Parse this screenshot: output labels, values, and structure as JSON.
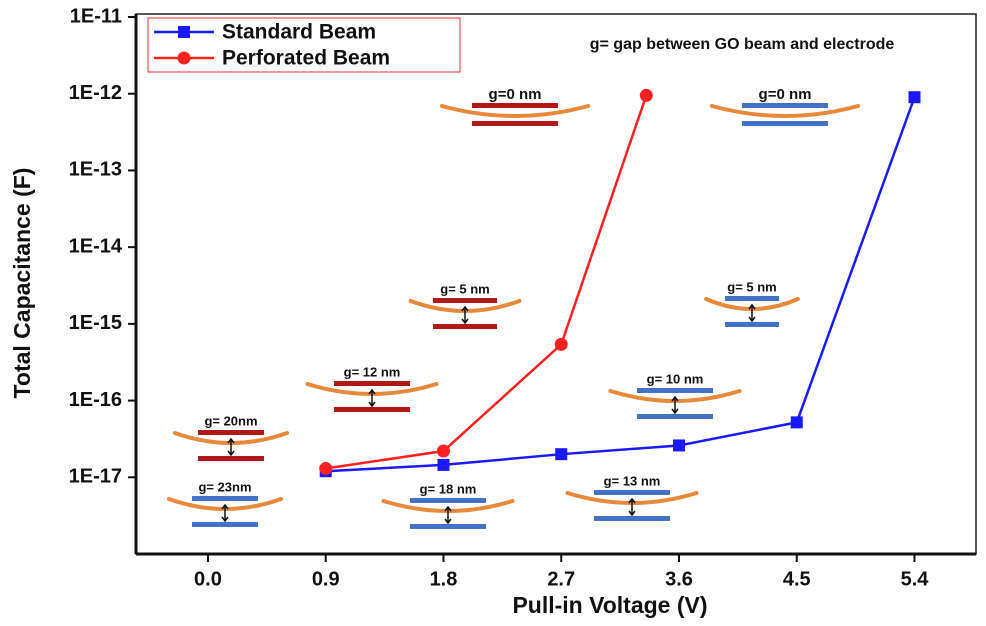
{
  "chart_data": {
    "type": "line",
    "ylabel": "Total Capacitance (F)",
    "xlabel": "Pull-in Voltage (V)",
    "yscale": "log",
    "ylim": [
      1e-18,
      1e-11
    ],
    "yticks": [
      {
        "value": 1e-11,
        "label": "1E-11"
      },
      {
        "value": 1e-12,
        "label": "1E-12"
      },
      {
        "value": 1e-13,
        "label": "1E-13"
      },
      {
        "value": 1e-14,
        "label": "1E-14"
      },
      {
        "value": 1e-15,
        "label": "1E-15"
      },
      {
        "value": 1e-16,
        "label": "1E-16"
      },
      {
        "value": 1e-17,
        "label": "1E-17"
      }
    ],
    "xlim": [
      -0.55,
      5.87
    ],
    "xticks": [
      {
        "value": 0,
        "label": "0.0"
      },
      0.9,
      1.8,
      2.7,
      3.6,
      4.5,
      5.4
    ],
    "legend": "upper left",
    "series": [
      {
        "name": "Standard Beam",
        "color": "#1a1aff",
        "marker": "square",
        "x": [
          0.9,
          1.8,
          2.7,
          3.6,
          4.5,
          5.4
        ],
        "values": [
          1.2e-17,
          1.45e-17,
          2e-17,
          2.6e-17,
          5.2e-17,
          9e-13
        ]
      },
      {
        "name": "Perforated Beam",
        "color": "#ff2020",
        "marker": "circle",
        "x": [
          0.9,
          1.8,
          2.7,
          3.35
        ],
        "values": [
          1.3e-17,
          2.2e-17,
          5.4e-16,
          9.5e-13
        ]
      }
    ],
    "annotations": [
      {
        "text": "g= gap between  GO beam and electrode"
      },
      {
        "text": "g=0 nm",
        "color": "#b01818"
      },
      {
        "text": "g=0 nm",
        "color": "#4472c4"
      },
      {
        "text": "g= 5 nm",
        "color": "#b01818"
      },
      {
        "text": "g= 5 nm",
        "color": "#4472c4"
      },
      {
        "text": "g= 12 nm",
        "color": "#b01818"
      },
      {
        "text": "g= 10 nm",
        "color": "#4472c4"
      },
      {
        "text": "g= 20nm",
        "color": "#b01818"
      },
      {
        "text": "g= 23nm",
        "color": "#4472c4"
      },
      {
        "text": "g= 18 nm",
        "color": "#4472c4"
      },
      {
        "text": "g= 13 nm",
        "color": "#4472c4"
      }
    ]
  }
}
